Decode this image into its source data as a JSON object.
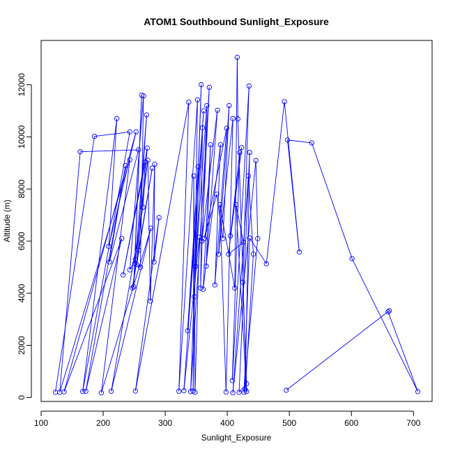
{
  "chart_data": {
    "type": "line",
    "title": "ATOM1 Southbound Sunlight_Exposure",
    "xlabel": "Sunlight_Exposure",
    "ylabel": "Altitude (m)",
    "xlim": [
      100,
      730
    ],
    "ylim": [
      -150,
      13700
    ],
    "xticks": [
      100,
      200,
      300,
      400,
      500,
      600,
      700
    ],
    "yticks": [
      0,
      2000,
      4000,
      6000,
      8000,
      10000,
      12000
    ],
    "xtick_labels": [
      "100",
      "200",
      "300",
      "400",
      "500",
      "600",
      "700"
    ],
    "ytick_labels": [
      "0",
      "2000",
      "4000",
      "6000",
      "8000",
      "10000",
      "12000"
    ],
    "grid": false,
    "marker": "open-circle",
    "line_color": "#0000ff",
    "series": [
      {
        "points": [
          [
            123,
            200
          ],
          [
            186,
            10020
          ],
          [
            243,
            10190
          ],
          [
            167,
            230
          ],
          [
            222,
            10700
          ],
          [
            209,
            5800
          ],
          [
            253,
            10190
          ],
          [
            137,
            220
          ],
          [
            230,
            6100
          ],
          [
            172,
            240
          ],
          [
            236,
            8900
          ],
          [
            210,
            5200
          ],
          [
            257,
            9500
          ],
          [
            163,
            9430
          ],
          [
            130,
            200
          ],
          [
            243,
            9120
          ],
          [
            197,
            180
          ],
          [
            277,
            6500
          ],
          [
            213,
            240
          ],
          [
            264,
            7300
          ],
          [
            271,
            9570
          ],
          [
            232,
            4700
          ],
          [
            268,
            9030
          ],
          [
            257,
            5650
          ],
          [
            247,
            4200
          ],
          [
            279,
            8800
          ],
          [
            254,
            5100
          ],
          [
            270,
            10840
          ],
          [
            249,
            4250
          ],
          [
            262,
            11600
          ],
          [
            251,
            5150
          ],
          [
            260,
            5000
          ],
          [
            265,
            11570
          ],
          [
            243,
            4900
          ],
          [
            252,
            5300
          ],
          [
            272,
            9100
          ],
          [
            276,
            3700
          ],
          [
            283,
            8950
          ],
          [
            282,
            5200
          ],
          [
            290,
            6900
          ],
          [
            252,
            250
          ],
          [
            338,
            11330
          ],
          [
            322,
            240
          ],
          [
            352,
            11420
          ],
          [
            345,
            250
          ],
          [
            346,
            8500
          ],
          [
            348,
            200
          ],
          [
            355,
            6150
          ],
          [
            330,
            260
          ],
          [
            362,
            11000
          ],
          [
            336,
            2560
          ],
          [
            353,
            8850
          ],
          [
            349,
            5030
          ],
          [
            367,
            11200
          ],
          [
            357,
            4200
          ],
          [
            360,
            10350
          ],
          [
            347,
            3870
          ],
          [
            358,
            12000
          ],
          [
            341,
            230
          ],
          [
            371,
            11900
          ],
          [
            359,
            6000
          ],
          [
            384,
            11020
          ],
          [
            366,
            5040
          ],
          [
            373,
            9700
          ],
          [
            361,
            4150
          ],
          [
            389,
            9700
          ],
          [
            380,
            4320
          ],
          [
            399,
            10330
          ],
          [
            363,
            6100
          ],
          [
            383,
            7800
          ],
          [
            393,
            6100
          ],
          [
            403,
            11200
          ],
          [
            386,
            5500
          ],
          [
            409,
            10700
          ],
          [
            398,
            210
          ],
          [
            388,
            7400
          ],
          [
            412,
            4200
          ],
          [
            416,
            13050
          ],
          [
            417,
            10690
          ],
          [
            431,
            230
          ],
          [
            414,
            7400
          ],
          [
            426,
            5960
          ],
          [
            402,
            5500
          ],
          [
            423,
            9590
          ],
          [
            405,
            6200
          ],
          [
            420,
            9400
          ],
          [
            408,
            650
          ],
          [
            435,
            11950
          ],
          [
            425,
            4420
          ],
          [
            431,
            530
          ],
          [
            419,
            200
          ],
          [
            436,
            9400
          ],
          [
            429,
            300
          ],
          [
            442,
            5500
          ],
          [
            434,
            8500
          ],
          [
            409,
            180
          ],
          [
            446,
            9090
          ],
          [
            449,
            6100
          ],
          [
            427,
            200
          ],
          [
            436,
            6120
          ],
          [
            463,
            5130
          ],
          [
            492,
            11350
          ],
          [
            516,
            5580
          ],
          [
            497,
            9880
          ],
          [
            536,
            9770
          ],
          [
            601,
            5330
          ],
          [
            707,
            230
          ],
          [
            659,
            3290
          ],
          [
            661,
            3330
          ],
          [
            495,
            280
          ]
        ]
      }
    ]
  }
}
